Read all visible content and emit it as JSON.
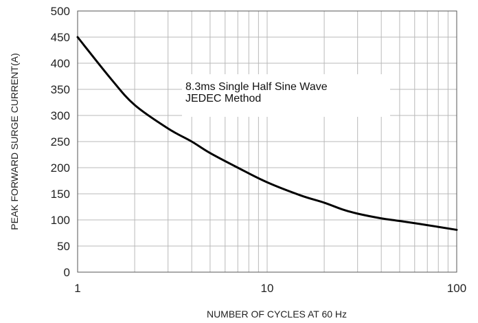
{
  "chart_data": {
    "type": "line",
    "title": "",
    "xlabel": "NUMBER OF CYCLES AT 60 Hz",
    "ylabel": "PEAK FORWARD SURGE CURRENT(A)",
    "x_scale": "log",
    "xlim": [
      1,
      100
    ],
    "ylim": [
      0,
      500
    ],
    "grid": true,
    "x_ticks": [
      1,
      10,
      100
    ],
    "x_tick_labels": [
      "1",
      "10",
      "100"
    ],
    "y_ticks": [
      0,
      50,
      100,
      150,
      200,
      250,
      300,
      350,
      400,
      450,
      500
    ],
    "y_tick_labels": [
      "0",
      "50",
      "100",
      "150",
      "200",
      "250",
      "300",
      "350",
      "400",
      "450",
      "500"
    ],
    "annotations": [
      "8.3ms Single Half Sine Wave",
      "JEDEC Method"
    ],
    "series": [
      {
        "x": [
          1,
          1.5,
          2,
          3,
          4,
          5,
          7,
          10,
          15,
          20,
          25,
          30,
          40,
          50,
          70,
          100
        ],
        "y": [
          450,
          370,
          320,
          275,
          250,
          228,
          200,
          172,
          147,
          133,
          120,
          112,
          103,
          98,
          90,
          81
        ]
      }
    ],
    "colors": {
      "line": "#000000",
      "grid": "#b8b8b8",
      "frame": "#555555"
    }
  }
}
